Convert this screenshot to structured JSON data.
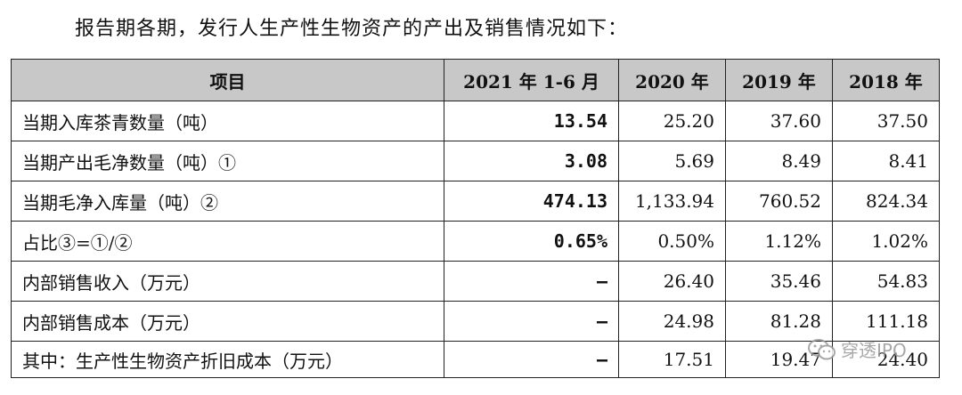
{
  "intro": "报告期各期，发行人生产性生物资产的产出及销售情况如下：",
  "table": {
    "headers": [
      "项目",
      "2021 年 1-6 月",
      "2020 年",
      "2019 年",
      "2018 年"
    ],
    "rows": [
      [
        "当期入库茶青数量（吨）",
        "13.54",
        "25.20",
        "37.60",
        "37.50"
      ],
      [
        "当期产出毛净数量（吨）①",
        "3.08",
        "5.69",
        "8.49",
        "8.41"
      ],
      [
        "当期毛净入库量（吨）②",
        "474.13",
        "1,133.94",
        "760.52",
        "824.34"
      ],
      [
        "占比③=①/②",
        "0.65%",
        "0.50%",
        "1.12%",
        "1.02%"
      ],
      [
        "内部销售收入（万元）",
        "–",
        "26.40",
        "35.46",
        "54.83"
      ],
      [
        "内部销售成本（万元）",
        "–",
        "24.98",
        "81.28",
        "111.18"
      ],
      [
        "其中：生产性生物资产折旧成本（万元）",
        "–",
        "17.51",
        "19.47",
        "24.40"
      ]
    ]
  },
  "watermark": {
    "text": "穿透IPO",
    "icon": "wechat-icon"
  }
}
